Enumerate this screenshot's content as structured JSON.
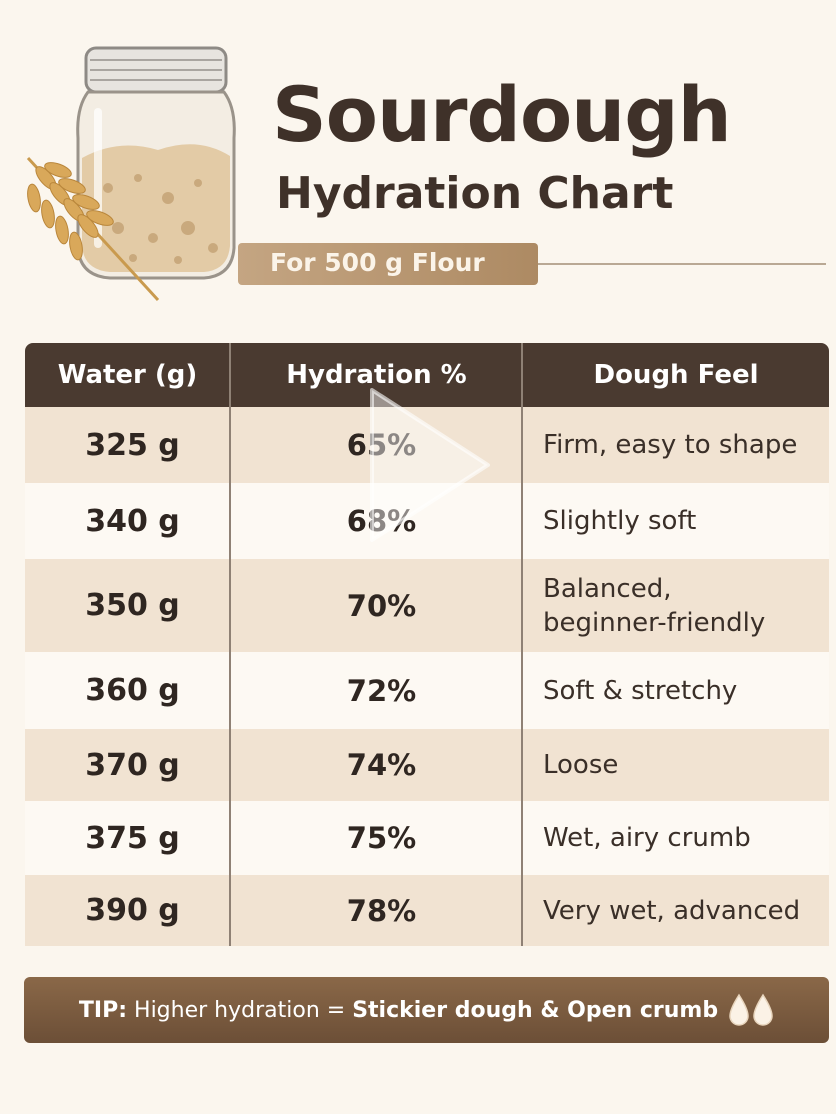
{
  "header": {
    "title": "Sourdough",
    "subtitle": "Hydration Chart",
    "flour_label": "For 500 g Flour"
  },
  "table": {
    "columns": [
      "Water (g)",
      "Hydration %",
      "Dough Feel"
    ],
    "rows": [
      {
        "water": "325 g",
        "hydration": "65%",
        "feel": "Firm, easy to shape"
      },
      {
        "water": "340 g",
        "hydration": "68%",
        "feel": "Slightly soft"
      },
      {
        "water": "350 g",
        "hydration": "70%",
        "feel": "Balanced,\nbeginner-friendly"
      },
      {
        "water": "360 g",
        "hydration": "72%",
        "feel": "Soft & stretchy"
      },
      {
        "water": "370 g",
        "hydration": "74%",
        "feel": "Loose"
      },
      {
        "water": "375 g",
        "hydration": "75%",
        "feel": "Wet, airy crumb"
      },
      {
        "water": "390 g",
        "hydration": "78%",
        "feel": "Very wet, advanced"
      }
    ]
  },
  "tip": {
    "prefix": "TIP:",
    "text": " Higher hydration = ",
    "emphasis": "Stickier dough & Open crumb",
    "icon": "water-drops-icon"
  },
  "chart_data": {
    "type": "table",
    "title": "Sourdough Hydration Chart",
    "subtitle": "For 500 g Flour",
    "columns": [
      "Water (g)",
      "Hydration %",
      "Dough Feel"
    ],
    "rows": [
      [
        "325 g",
        "65%",
        "Firm, easy to shape"
      ],
      [
        "340 g",
        "68%",
        "Slightly soft"
      ],
      [
        "350 g",
        "70%",
        "Balanced, beginner-friendly"
      ],
      [
        "360 g",
        "72%",
        "Soft & stretchy"
      ],
      [
        "370 g",
        "74%",
        "Loose"
      ],
      [
        "375 g",
        "75%",
        "Wet, airy crumb"
      ],
      [
        "390 g",
        "78%",
        "Very wet, advanced"
      ]
    ]
  },
  "colors": {
    "background": "#fbf6ee",
    "header_bar": "#4a3a30",
    "row_tint": "#f1e3d2",
    "ribbon": "#b8956e",
    "tip_bar": "#7a5a3f"
  }
}
